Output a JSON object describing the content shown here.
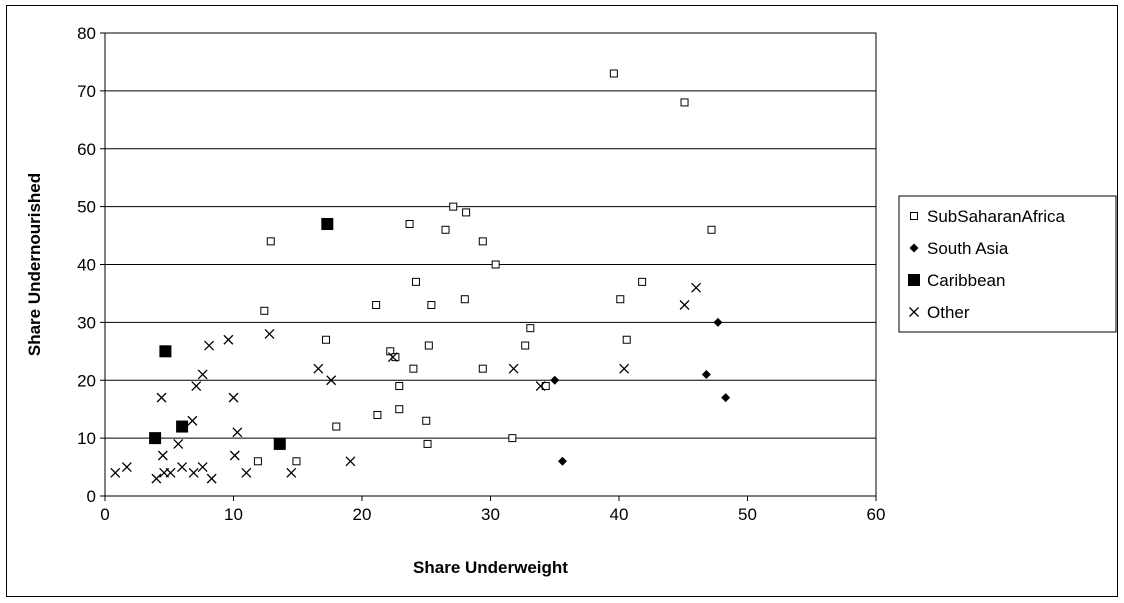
{
  "chart_data": {
    "type": "scatter",
    "title": "",
    "xlabel": "Share Underweight",
    "ylabel": "Share Undernourished",
    "xlim": [
      0,
      60
    ],
    "ylim": [
      0,
      80
    ],
    "xticks": [
      "0",
      "10",
      "20",
      "30",
      "40",
      "50",
      "60"
    ],
    "yticks": [
      "0",
      "10",
      "20",
      "30",
      "40",
      "50",
      "60",
      "70",
      "80"
    ],
    "grid": "horizontal",
    "legend_position": "right",
    "series": [
      {
        "name": "SubSaharanAfrica",
        "marker": "open-square",
        "color": "#000000",
        "points": [
          [
            39.6,
            73
          ],
          [
            45.1,
            68
          ],
          [
            12.9,
            44
          ],
          [
            12.4,
            32
          ],
          [
            17.2,
            27
          ],
          [
            11.9,
            6
          ],
          [
            14.9,
            6
          ],
          [
            18.0,
            12
          ],
          [
            21.2,
            14
          ],
          [
            21.1,
            33
          ],
          [
            22.2,
            25
          ],
          [
            22.6,
            24
          ],
          [
            22.9,
            19
          ],
          [
            22.9,
            15
          ],
          [
            23.7,
            47
          ],
          [
            24.0,
            22
          ],
          [
            24.2,
            37
          ],
          [
            25.0,
            13
          ],
          [
            25.1,
            9
          ],
          [
            25.2,
            26
          ],
          [
            25.4,
            33
          ],
          [
            26.5,
            46
          ],
          [
            27.1,
            50
          ],
          [
            28.0,
            34
          ],
          [
            28.1,
            49
          ],
          [
            29.4,
            44
          ],
          [
            29.4,
            22
          ],
          [
            30.4,
            40
          ],
          [
            31.7,
            10
          ],
          [
            32.7,
            26
          ],
          [
            33.1,
            29
          ],
          [
            34.3,
            19
          ],
          [
            40.1,
            34
          ],
          [
            40.6,
            27
          ],
          [
            41.8,
            37
          ],
          [
            47.2,
            46
          ]
        ]
      },
      {
        "name": "South Asia",
        "marker": "filled-diamond",
        "color": "#000000",
        "points": [
          [
            35.0,
            20
          ],
          [
            35.6,
            6
          ],
          [
            46.8,
            21
          ],
          [
            47.7,
            30
          ],
          [
            48.3,
            17
          ]
        ]
      },
      {
        "name": "Caribbean",
        "marker": "filled-square-large",
        "color": "#000000",
        "points": [
          [
            3.9,
            10
          ],
          [
            4.7,
            25
          ],
          [
            6.0,
            12
          ],
          [
            13.6,
            9
          ],
          [
            17.3,
            47
          ]
        ]
      },
      {
        "name": "Other",
        "marker": "x",
        "color": "#000000",
        "points": [
          [
            0.8,
            4
          ],
          [
            1.7,
            5
          ],
          [
            4.0,
            3
          ],
          [
            4.4,
            17
          ],
          [
            4.5,
            7
          ],
          [
            4.6,
            4
          ],
          [
            5.1,
            4
          ],
          [
            5.7,
            9
          ],
          [
            6.0,
            5
          ],
          [
            6.8,
            13
          ],
          [
            6.9,
            4
          ],
          [
            7.1,
            19
          ],
          [
            7.6,
            21
          ],
          [
            7.6,
            5
          ],
          [
            8.1,
            26
          ],
          [
            8.3,
            3
          ],
          [
            9.6,
            27
          ],
          [
            10.0,
            17
          ],
          [
            10.1,
            7
          ],
          [
            10.3,
            11
          ],
          [
            11.0,
            4
          ],
          [
            12.8,
            28
          ],
          [
            14.5,
            4
          ],
          [
            16.6,
            22
          ],
          [
            17.6,
            20
          ],
          [
            19.1,
            6
          ],
          [
            22.4,
            24
          ],
          [
            31.8,
            22
          ],
          [
            33.9,
            19
          ],
          [
            40.4,
            22
          ],
          [
            45.1,
            33
          ],
          [
            46.0,
            36
          ]
        ]
      }
    ]
  }
}
